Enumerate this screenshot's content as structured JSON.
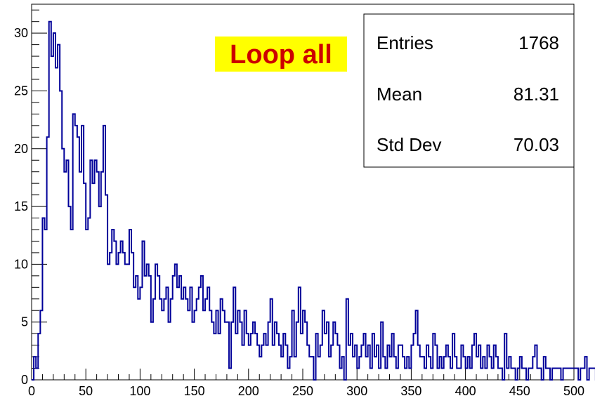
{
  "chart_data": {
    "type": "bar",
    "style": "step-histogram",
    "title": "Loop all",
    "xlabel": "",
    "ylabel": "",
    "xlim": [
      0,
      500
    ],
    "ylim": [
      0,
      32.5
    ],
    "bin_width": 2,
    "x_ticks": [
      0,
      50,
      100,
      150,
      200,
      250,
      300,
      350,
      400,
      450,
      500
    ],
    "y_ticks": [
      0,
      5,
      10,
      15,
      20,
      25,
      30
    ],
    "line_color": "#000099",
    "title_color": "#cc0000",
    "title_background": "#ffff00",
    "legend": "top-right",
    "grid": false,
    "stats": [
      {
        "label": "Entries",
        "value": "1768"
      },
      {
        "label": "Mean",
        "value": "81.31"
      },
      {
        "label": "Std Dev",
        "value": "70.03"
      }
    ],
    "values": [
      0,
      2,
      1,
      4,
      6,
      14,
      13,
      21,
      31,
      28,
      30,
      27,
      29,
      25,
      20,
      18,
      19,
      15,
      13,
      23,
      22,
      21,
      18,
      22,
      17,
      13,
      14,
      19,
      17,
      19,
      18,
      15,
      18,
      22,
      16,
      10,
      11,
      13,
      12,
      10,
      11,
      12,
      11,
      10,
      10,
      13,
      11,
      8,
      9,
      7,
      8,
      12,
      9,
      10,
      9,
      5,
      7,
      10,
      9,
      7,
      6,
      7,
      8,
      5,
      7,
      9,
      10,
      8,
      9,
      7,
      8,
      7,
      6,
      8,
      5,
      6,
      7,
      8,
      9,
      6,
      7,
      8,
      6,
      5,
      4,
      6,
      4,
      7,
      6,
      5,
      5,
      1,
      5,
      8,
      4,
      6,
      5,
      3,
      6,
      4,
      3,
      4,
      5,
      4,
      3,
      2,
      3,
      4,
      3,
      5,
      7,
      3,
      5,
      4,
      3,
      2,
      4,
      3,
      1,
      2,
      6,
      2,
      5,
      8,
      4,
      6,
      5,
      3,
      2,
      2,
      0,
      4,
      2,
      3,
      6,
      4,
      5,
      2,
      3,
      5,
      4,
      3,
      1,
      2,
      0,
      7,
      3,
      4,
      2,
      3,
      1,
      2,
      3,
      4,
      2,
      3,
      1,
      4,
      2,
      3,
      1,
      5,
      2,
      1,
      3,
      2,
      4,
      2,
      1,
      3,
      3,
      2,
      1,
      2,
      1,
      3,
      4,
      6,
      3,
      2,
      2,
      1,
      3,
      2,
      1,
      4,
      3,
      1,
      2,
      1,
      2,
      3,
      2,
      1,
      4,
      2,
      1,
      1,
      3,
      2,
      1,
      2,
      1,
      3,
      4,
      2,
      3,
      1,
      2,
      1,
      3,
      2,
      1,
      3,
      2,
      1,
      1,
      0,
      4,
      1,
      2,
      1,
      1,
      0,
      1,
      2,
      1,
      1,
      0,
      1,
      1,
      2,
      3,
      1,
      1,
      0,
      2,
      1,
      1,
      0,
      1,
      1,
      1,
      1,
      0,
      1,
      1,
      1,
      1,
      1,
      1,
      1,
      0,
      1,
      1,
      2,
      0,
      1,
      1,
      1,
      0,
      1,
      1,
      2,
      1,
      0,
      1,
      0,
      1,
      1,
      0,
      0,
      0,
      1,
      0,
      0,
      1,
      0,
      0,
      0,
      0,
      1,
      0,
      0,
      1,
      1,
      0,
      1,
      0,
      1,
      1,
      1,
      0,
      0,
      0,
      1,
      1,
      1,
      1,
      0,
      0,
      1,
      0,
      0,
      1,
      0,
      0,
      0,
      0,
      0,
      0,
      0,
      0,
      0,
      0,
      0,
      1,
      1,
      1,
      1,
      0,
      0,
      0,
      0,
      0,
      1,
      0,
      0,
      0,
      0,
      0,
      0,
      0,
      0,
      0,
      0,
      0,
      0,
      0,
      0,
      0,
      0,
      0,
      0,
      0,
      0,
      0,
      0,
      0,
      0,
      0,
      0,
      0,
      0,
      0,
      0,
      0,
      0,
      0,
      0,
      0,
      0,
      0,
      0,
      0,
      0,
      0,
      1,
      0,
      0,
      0,
      0,
      0,
      0,
      0,
      0,
      0,
      0,
      1,
      0,
      0,
      0,
      0,
      0,
      0,
      0,
      0,
      0,
      0,
      0,
      0,
      0,
      0,
      0,
      0,
      0,
      0,
      0,
      0,
      0,
      0,
      0,
      0,
      0,
      0,
      0,
      0,
      0,
      0,
      0,
      0,
      0,
      0,
      0,
      0,
      0,
      0,
      0,
      0,
      0,
      0,
      0,
      0,
      0,
      0,
      0,
      0,
      0,
      0,
      0,
      0,
      0,
      0,
      0,
      0,
      0,
      0,
      0,
      0,
      0,
      0,
      0,
      0,
      0,
      0,
      0,
      0,
      0,
      0,
      0,
      0,
      0,
      0,
      0,
      0,
      0,
      0,
      0,
      0,
      0,
      0,
      0,
      0,
      0,
      0,
      0,
      0,
      0,
      0,
      0,
      0,
      0,
      0,
      0,
      0,
      0,
      0,
      0,
      0,
      0,
      0,
      0,
      0,
      0,
      0,
      0,
      0,
      0,
      0,
      0,
      0,
      0,
      0,
      0,
      0,
      0,
      0,
      0,
      0,
      0
    ]
  }
}
